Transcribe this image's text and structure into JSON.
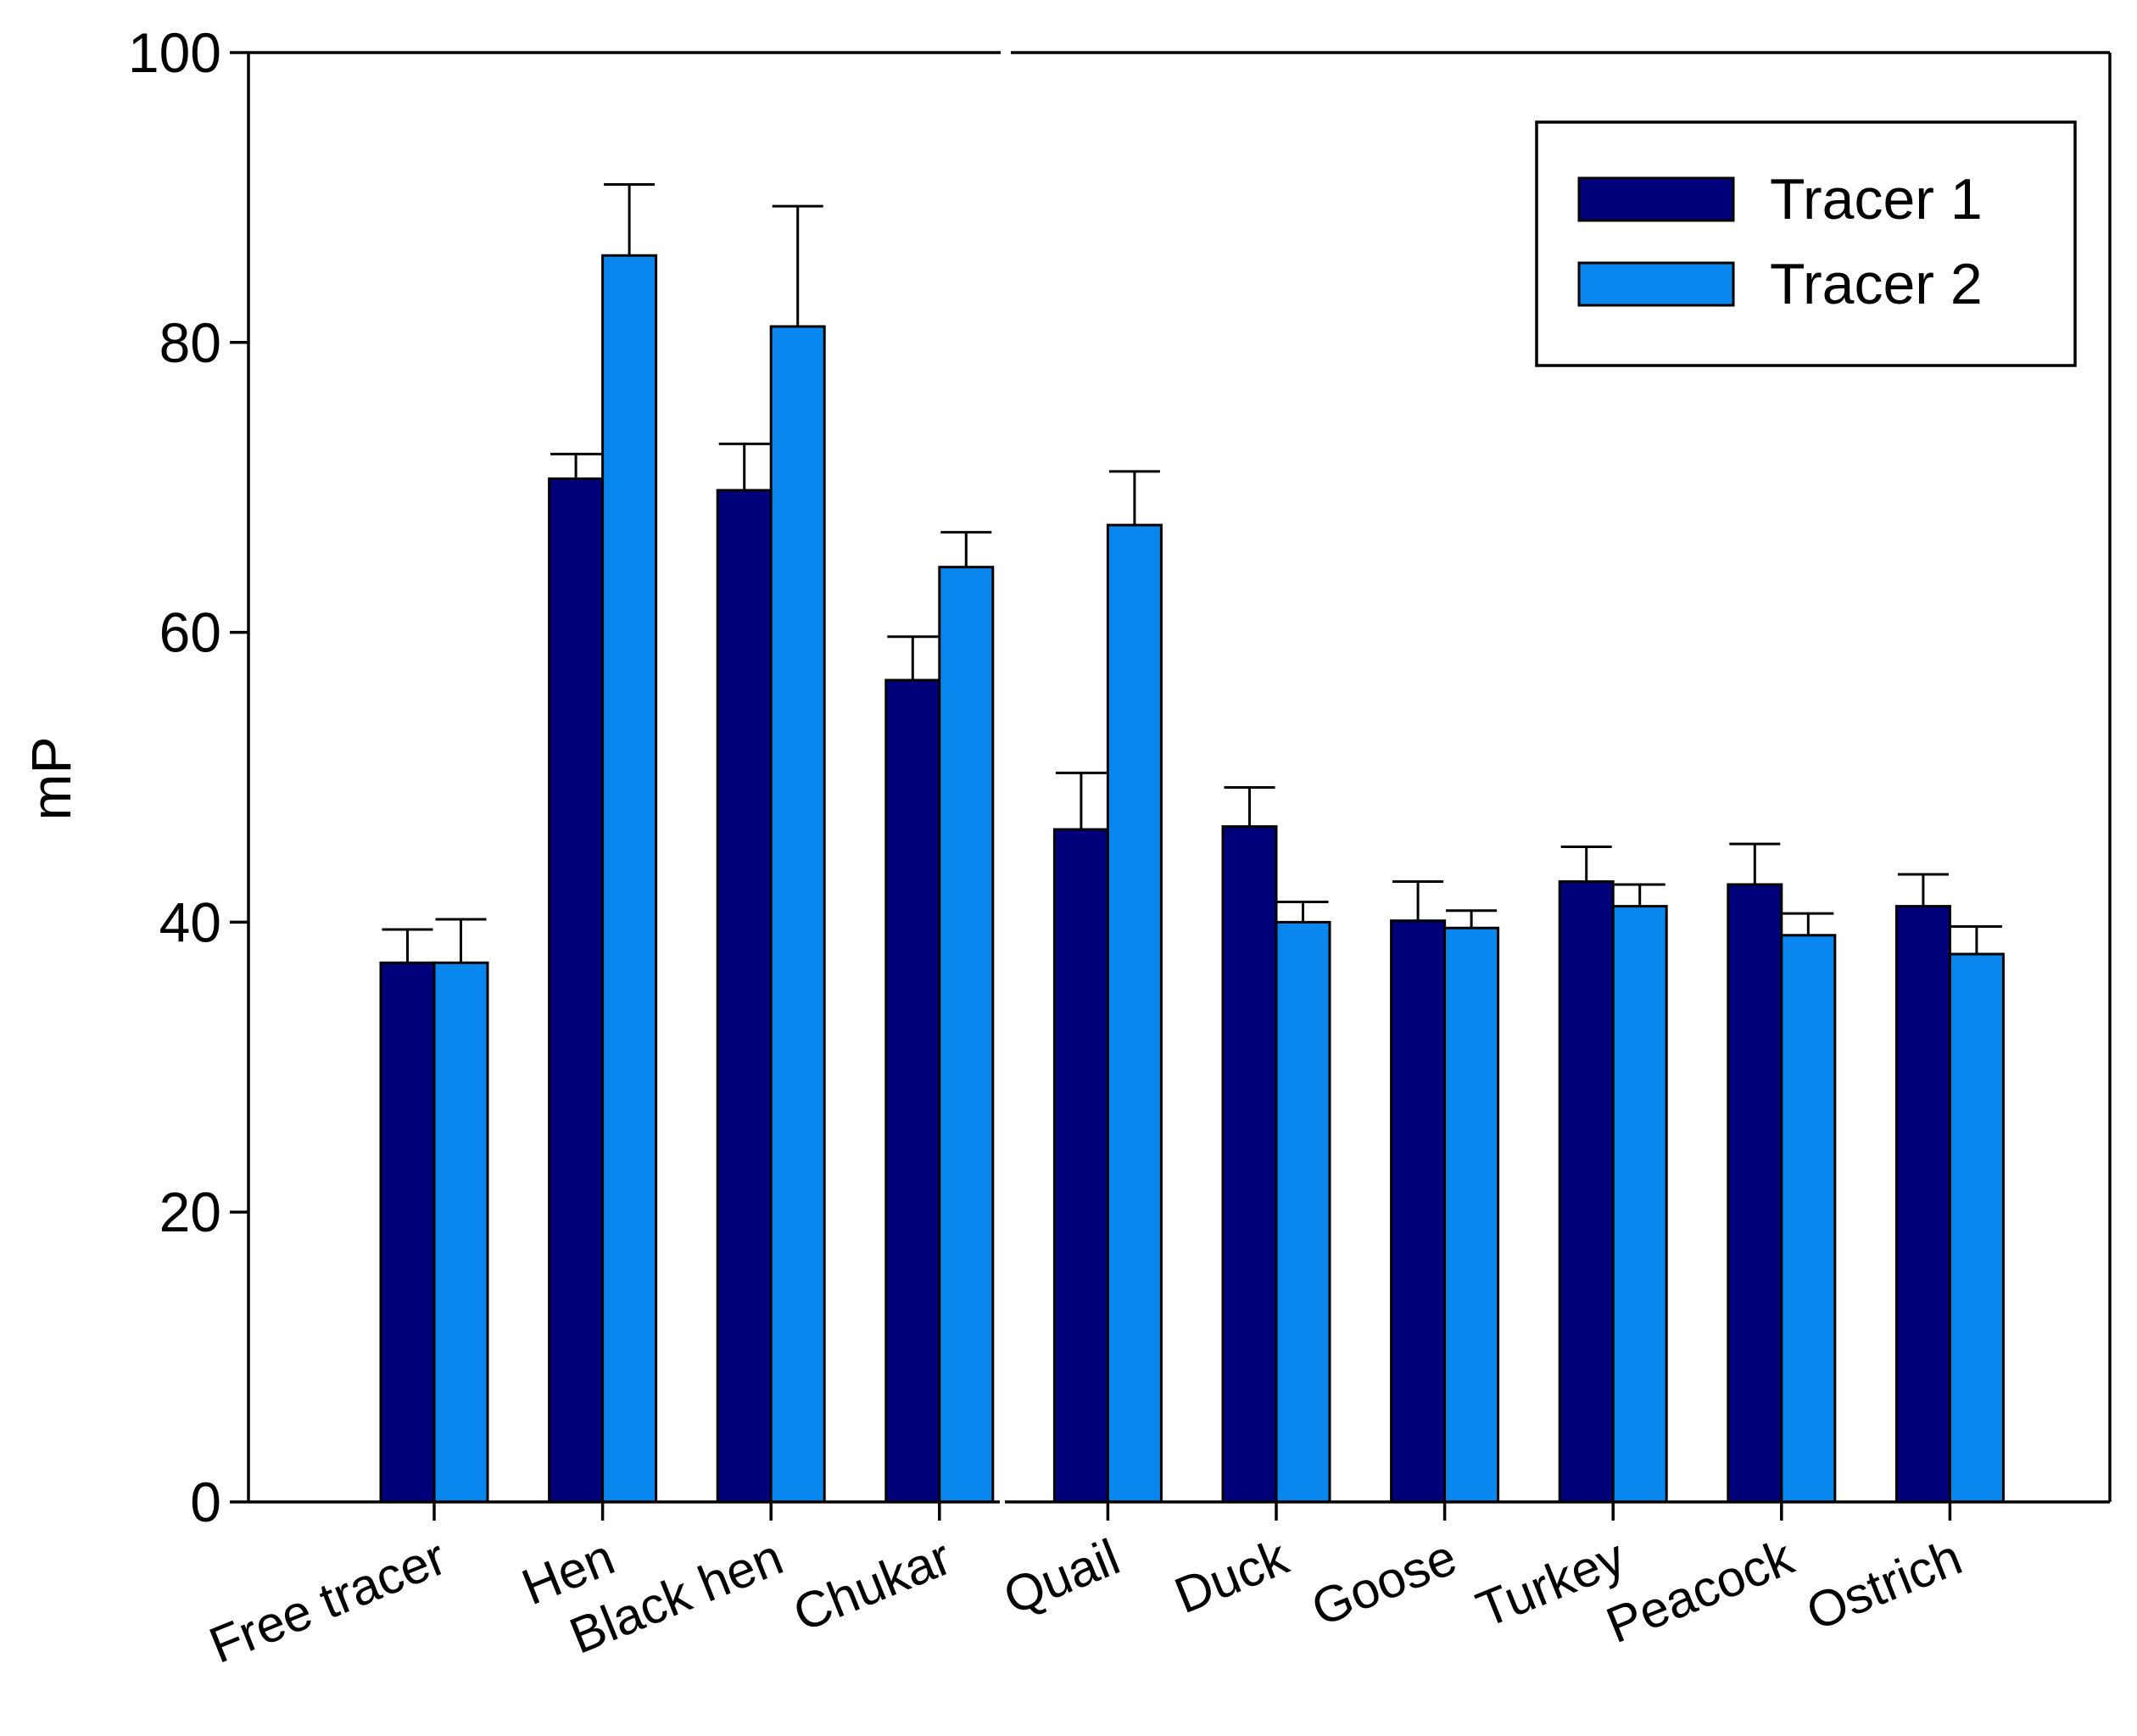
{
  "chart_data": {
    "type": "bar",
    "title": "",
    "xlabel": "",
    "ylabel": "mP",
    "ylim": [
      0,
      100
    ],
    "yticks": [
      0,
      20,
      40,
      60,
      80,
      100
    ],
    "categories": [
      "Free tracer",
      "Hen",
      "Black hen",
      "Chukar",
      "Quail",
      "Duck",
      "Goose",
      "Turkey",
      "Peacock",
      "Ostrich"
    ],
    "series": [
      {
        "name": "Tracer 1",
        "color": "#00007a",
        "values": [
          37.2,
          70.6,
          69.8,
          56.7,
          46.4,
          46.6,
          40.1,
          42.8,
          42.6,
          41.1
        ],
        "errors": [
          2.3,
          1.7,
          3.2,
          3.0,
          3.9,
          2.7,
          2.7,
          2.4,
          2.8,
          2.2
        ]
      },
      {
        "name": "Tracer 2",
        "color": "#0a86ef",
        "values": [
          37.2,
          86.0,
          81.1,
          64.5,
          67.4,
          40.0,
          39.6,
          41.1,
          39.1,
          37.8
        ],
        "errors": [
          3.0,
          4.9,
          8.3,
          2.4,
          3.7,
          1.4,
          1.2,
          1.5,
          1.5,
          1.9
        ]
      }
    ],
    "legend": {
      "position": "top-right",
      "entries": [
        "Tracer 1",
        "Tracer 2"
      ]
    },
    "grid": false
  }
}
